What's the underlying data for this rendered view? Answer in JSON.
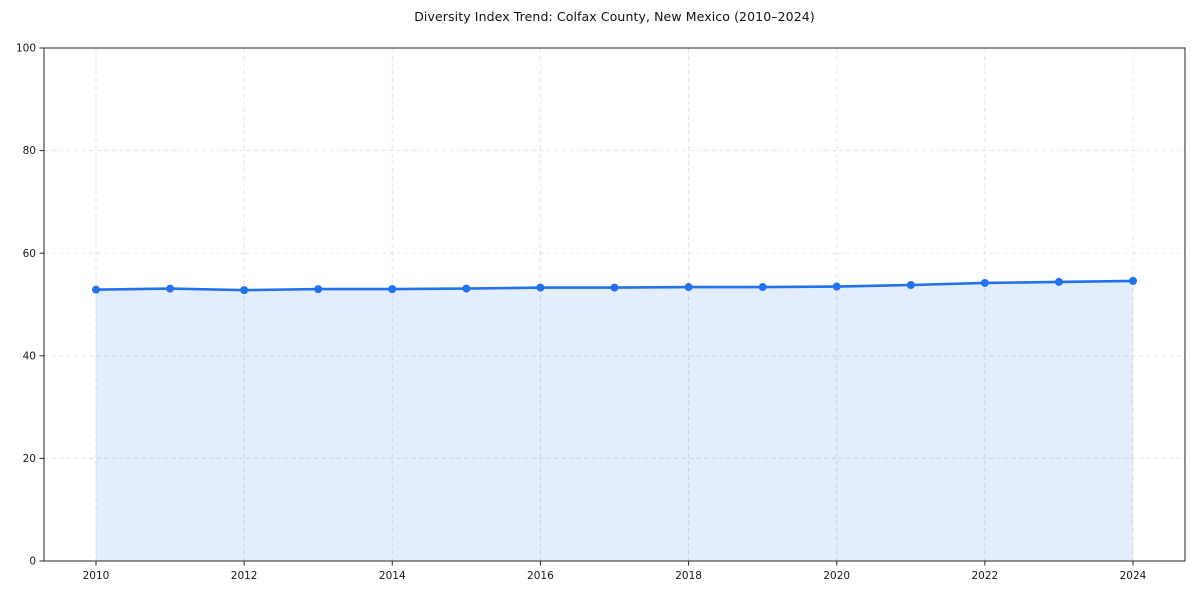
{
  "chart_data": {
    "type": "area",
    "title": "Diversity Index Trend: Colfax County, New Mexico (2010–2024)",
    "xlabel": "",
    "ylabel": "",
    "x": [
      2010,
      2011,
      2012,
      2013,
      2014,
      2015,
      2016,
      2017,
      2018,
      2019,
      2020,
      2021,
      2022,
      2023,
      2024
    ],
    "series": [
      {
        "name": "Diversity Index",
        "values": [
          52.9,
          53.1,
          52.8,
          53.0,
          53.0,
          53.1,
          53.3,
          53.3,
          53.4,
          53.4,
          53.5,
          53.8,
          54.2,
          54.4,
          54.6
        ]
      }
    ],
    "ylim": [
      0,
      100
    ],
    "y_ticks": [
      0,
      20,
      40,
      60,
      80,
      100
    ],
    "x_ticks": [
      2010,
      2012,
      2014,
      2016,
      2018,
      2020,
      2022,
      2024
    ],
    "grid": true,
    "legend": false
  },
  "colors": {
    "line": "#2271ee",
    "marker": "#2271ee",
    "area_fill": "rgba(34,113,238,0.13)",
    "grid": "#e3e3e3",
    "axis": "#262626",
    "tick_text": "#1a1a1a",
    "background": "#ffffff"
  }
}
